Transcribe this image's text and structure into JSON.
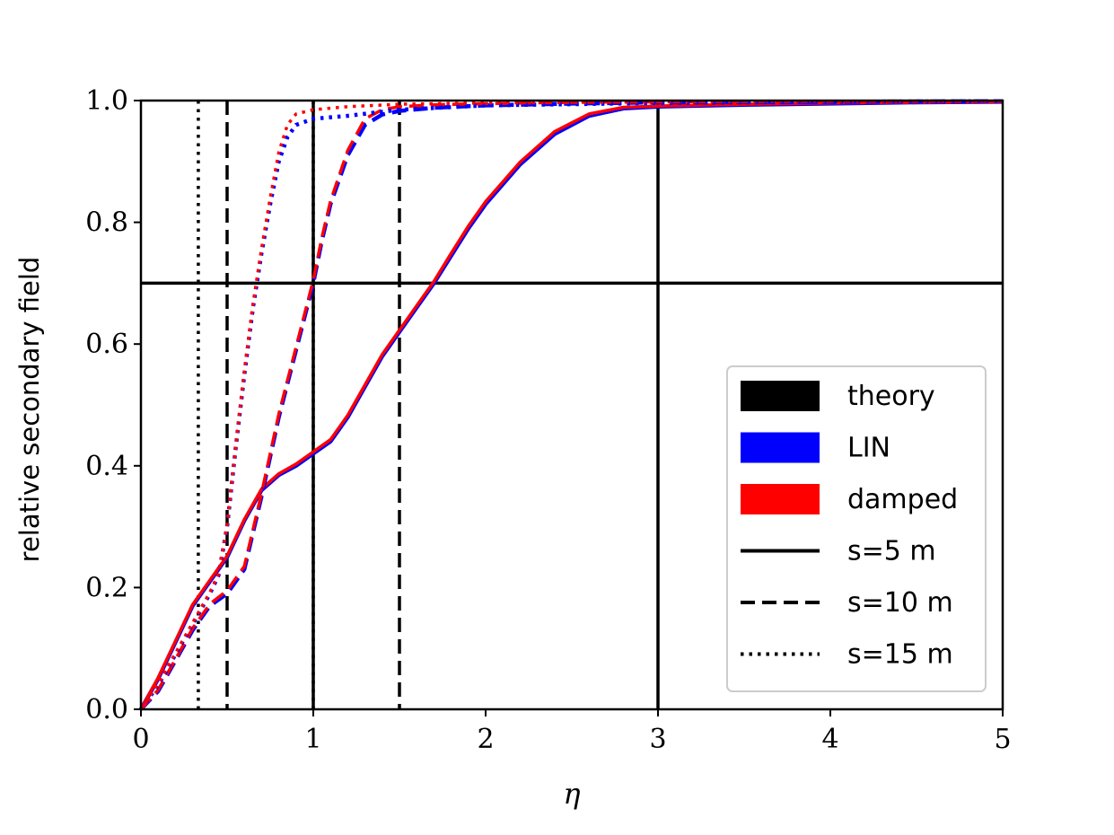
{
  "chart_data": {
    "type": "line",
    "xlabel": "η",
    "ylabel": "relative secondary field",
    "xlim": [
      0,
      5
    ],
    "ylim": [
      0,
      1
    ],
    "x_ticks": [
      "0",
      "1",
      "2",
      "3",
      "4",
      "5"
    ],
    "y_ticks": [
      "0.0",
      "0.2",
      "0.4",
      "0.6",
      "0.8",
      "1.0"
    ],
    "grid": false,
    "legend_position": "lower-right",
    "colors": {
      "theory": "#000000",
      "LIN": "#0000ff",
      "damped": "#ff0000"
    },
    "legend": [
      {
        "label": "theory",
        "kind": "patch",
        "color": "#000000"
      },
      {
        "label": "LIN",
        "kind": "patch",
        "color": "#0000ff"
      },
      {
        "label": "damped",
        "kind": "patch",
        "color": "#ff0000"
      },
      {
        "label": "s=5 m",
        "kind": "line",
        "style": "solid"
      },
      {
        "label": "s=10 m",
        "kind": "line",
        "style": "dashed"
      },
      {
        "label": "s=15 m",
        "kind": "line",
        "style": "dotted"
      }
    ],
    "reference_lines": [
      {
        "orientation": "horizontal",
        "value": 0.7,
        "style": "solid",
        "series": "theory"
      },
      {
        "orientation": "vertical",
        "value": 1.0,
        "style": "solid",
        "series": "theory, s=5 m"
      },
      {
        "orientation": "vertical",
        "value": 3.0,
        "style": "solid",
        "series": "theory, s=5 m"
      },
      {
        "orientation": "vertical",
        "value": 0.5,
        "style": "dashed",
        "series": "theory, s=10 m"
      },
      {
        "orientation": "vertical",
        "value": 1.5,
        "style": "dashed",
        "series": "theory, s=10 m"
      },
      {
        "orientation": "vertical",
        "value": 0.333,
        "style": "dotted",
        "series": "theory, s=15 m"
      },
      {
        "orientation": "vertical",
        "value": 1.0,
        "style": "dotted",
        "series": "theory, s=15 m"
      }
    ],
    "series": [
      {
        "model": "LIN",
        "style": "solid",
        "color": "#0000ff",
        "x": [
          0,
          0.1,
          0.2,
          0.3,
          0.4,
          0.5,
          0.6,
          0.7,
          0.8,
          0.9,
          1.0,
          1.1,
          1.2,
          1.3,
          1.4,
          1.5,
          1.6,
          1.7,
          1.8,
          1.9,
          2.0,
          2.2,
          2.4,
          2.6,
          2.8,
          3.0,
          3.5,
          4.0,
          4.5,
          5.0
        ],
        "y": [
          0.0,
          0.05,
          0.11,
          0.17,
          0.21,
          0.25,
          0.31,
          0.36,
          0.385,
          0.4,
          0.42,
          0.44,
          0.48,
          0.53,
          0.58,
          0.62,
          0.66,
          0.7,
          0.745,
          0.79,
          0.83,
          0.895,
          0.945,
          0.975,
          0.987,
          0.99,
          0.993,
          0.995,
          0.997,
          0.998
        ]
      },
      {
        "model": "damped",
        "style": "solid",
        "color": "#ff0000",
        "x": [
          0,
          0.1,
          0.2,
          0.3,
          0.4,
          0.5,
          0.6,
          0.7,
          0.8,
          0.9,
          1.0,
          1.1,
          1.2,
          1.3,
          1.4,
          1.5,
          1.6,
          1.7,
          1.8,
          1.9,
          2.0,
          2.2,
          2.4,
          2.6,
          2.8,
          3.0,
          3.5,
          4.0,
          4.5,
          5.0
        ],
        "y": [
          0.0,
          0.052,
          0.112,
          0.172,
          0.212,
          0.252,
          0.312,
          0.362,
          0.387,
          0.403,
          0.423,
          0.443,
          0.483,
          0.533,
          0.583,
          0.623,
          0.663,
          0.703,
          0.749,
          0.794,
          0.834,
          0.899,
          0.949,
          0.978,
          0.989,
          0.991,
          0.994,
          0.996,
          0.997,
          0.998
        ]
      },
      {
        "model": "LIN",
        "style": "dashed",
        "color": "#0000ff",
        "x": [
          0,
          0.1,
          0.2,
          0.3,
          0.4,
          0.5,
          0.6,
          0.7,
          0.8,
          0.9,
          1.0,
          1.05,
          1.1,
          1.2,
          1.3,
          1.4,
          1.5,
          1.7,
          2.0,
          2.5,
          3.0,
          4.0,
          5.0
        ],
        "y": [
          0.0,
          0.03,
          0.08,
          0.13,
          0.17,
          0.19,
          0.23,
          0.35,
          0.48,
          0.59,
          0.7,
          0.77,
          0.83,
          0.91,
          0.96,
          0.977,
          0.983,
          0.988,
          0.992,
          0.995,
          0.997,
          0.998,
          0.999
        ]
      },
      {
        "model": "damped",
        "style": "dashed",
        "color": "#ff0000",
        "x": [
          0,
          0.1,
          0.2,
          0.3,
          0.4,
          0.5,
          0.6,
          0.7,
          0.8,
          0.9,
          1.0,
          1.05,
          1.1,
          1.2,
          1.3,
          1.4,
          1.5,
          1.7,
          2.0,
          2.5,
          3.0,
          4.0,
          5.0
        ],
        "y": [
          0.0,
          0.032,
          0.082,
          0.133,
          0.173,
          0.195,
          0.235,
          0.355,
          0.485,
          0.595,
          0.705,
          0.775,
          0.835,
          0.918,
          0.97,
          0.985,
          0.99,
          0.993,
          0.995,
          0.997,
          0.998,
          0.999,
          0.999
        ]
      },
      {
        "model": "LIN",
        "style": "dotted",
        "color": "#0000ff",
        "x": [
          0,
          0.1,
          0.2,
          0.3,
          0.4,
          0.45,
          0.5,
          0.55,
          0.6,
          0.65,
          0.7,
          0.75,
          0.8,
          0.85,
          0.9,
          1.0,
          1.2,
          1.5,
          2.0,
          3.0,
          4.0,
          5.0
        ],
        "y": [
          0.0,
          0.04,
          0.09,
          0.14,
          0.19,
          0.22,
          0.3,
          0.43,
          0.55,
          0.66,
          0.75,
          0.83,
          0.9,
          0.94,
          0.96,
          0.97,
          0.975,
          0.985,
          0.992,
          0.996,
          0.998,
          0.999
        ]
      },
      {
        "model": "damped",
        "style": "dotted",
        "color": "#ff0000",
        "x": [
          0,
          0.1,
          0.2,
          0.3,
          0.4,
          0.45,
          0.5,
          0.55,
          0.6,
          0.65,
          0.7,
          0.75,
          0.8,
          0.85,
          0.9,
          1.0,
          1.2,
          1.5,
          2.0,
          3.0,
          4.0,
          5.0
        ],
        "y": [
          0.0,
          0.042,
          0.092,
          0.142,
          0.192,
          0.222,
          0.302,
          0.432,
          0.555,
          0.665,
          0.757,
          0.84,
          0.915,
          0.96,
          0.978,
          0.985,
          0.99,
          0.994,
          0.996,
          0.998,
          0.999,
          0.999
        ]
      }
    ]
  }
}
